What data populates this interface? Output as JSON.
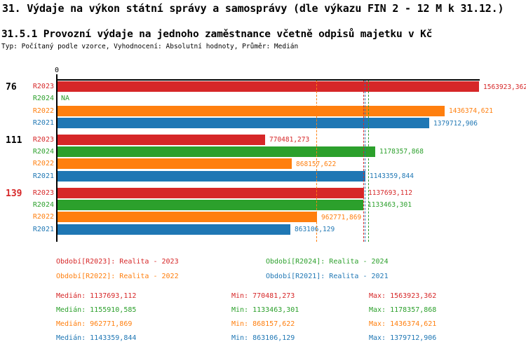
{
  "page": {
    "title": "31. Výdaje na výkon státní správy a samosprávy (dle výkazu FIN 2 - 12 M k 31.12.)",
    "subtitle": "31.5.1 Provozní výdaje na jednoho zaměstnance včetně odpisů majetku v Kč",
    "meta": "Typ: Počítaný podle vzorce, Vyhodnocení: Absolutní hodnoty, Průměr: Medián"
  },
  "chart_data": {
    "type": "bar",
    "orientation": "horizontal",
    "value_unit": "Kč",
    "x_origin_label": "0",
    "xlim": [
      0,
      1563923.362
    ],
    "grid": false,
    "series_colors": {
      "R2023": "#d62728",
      "R2024": "#2ca02c",
      "R2022": "#ff7f0e",
      "R2021": "#1f77b4"
    },
    "highlight_color": "#d62728",
    "groups": [
      {
        "label": "76",
        "highlight": false,
        "bars": [
          {
            "series": "R2023",
            "value": 1563923.362,
            "display": "1563923,362"
          },
          {
            "series": "R2024",
            "value": null,
            "display": "NA"
          },
          {
            "series": "R2022",
            "value": 1436374.621,
            "display": "1436374,621"
          },
          {
            "series": "R2021",
            "value": 1379712.906,
            "display": "1379712,906"
          }
        ]
      },
      {
        "label": "111",
        "highlight": false,
        "bars": [
          {
            "series": "R2023",
            "value": 770481.273,
            "display": "770481,273"
          },
          {
            "series": "R2024",
            "value": 1178357.868,
            "display": "1178357,868"
          },
          {
            "series": "R2022",
            "value": 868157.622,
            "display": "868157,622"
          },
          {
            "series": "R2021",
            "value": 1143359.844,
            "display": "1143359,844"
          }
        ]
      },
      {
        "label": "139",
        "highlight": true,
        "bars": [
          {
            "series": "R2023",
            "value": 1137693.112,
            "display": "1137693,112"
          },
          {
            "series": "R2024",
            "value": 1133463.301,
            "display": "1133463,301"
          },
          {
            "series": "R2022",
            "value": 962771.869,
            "display": "962771,869"
          },
          {
            "series": "R2021",
            "value": 863106.129,
            "display": "863106,129"
          }
        ]
      }
    ],
    "median_lines": [
      {
        "series": "R2023",
        "value": 1137693.112
      },
      {
        "series": "R2024",
        "value": 1155910.585
      },
      {
        "series": "R2022",
        "value": 962771.869
      },
      {
        "series": "R2021",
        "value": 1143359.844
      }
    ],
    "legend": [
      {
        "series": "R2023",
        "label": "Období[R2023]: Realita - 2023"
      },
      {
        "series": "R2024",
        "label": "Období[R2024]: Realita - 2024"
      },
      {
        "series": "R2022",
        "label": "Období[R2022]: Realita - 2022"
      },
      {
        "series": "R2021",
        "label": "Období[R2021]: Realita - 2021"
      }
    ]
  },
  "stats": {
    "labels": {
      "median": "Medián",
      "min": "Min",
      "max": "Max"
    },
    "rows": [
      {
        "series": "R2023",
        "median": "1137693,112",
        "min": "770481,273",
        "max": "1563923,362"
      },
      {
        "series": "R2024",
        "median": "1155910,585",
        "min": "1133463,301",
        "max": "1178357,868"
      },
      {
        "series": "R2022",
        "median": "962771,869",
        "min": "868157,622",
        "max": "1436374,621"
      },
      {
        "series": "R2021",
        "median": "1143359,844",
        "min": "863106,129",
        "max": "1379712,906"
      }
    ]
  }
}
